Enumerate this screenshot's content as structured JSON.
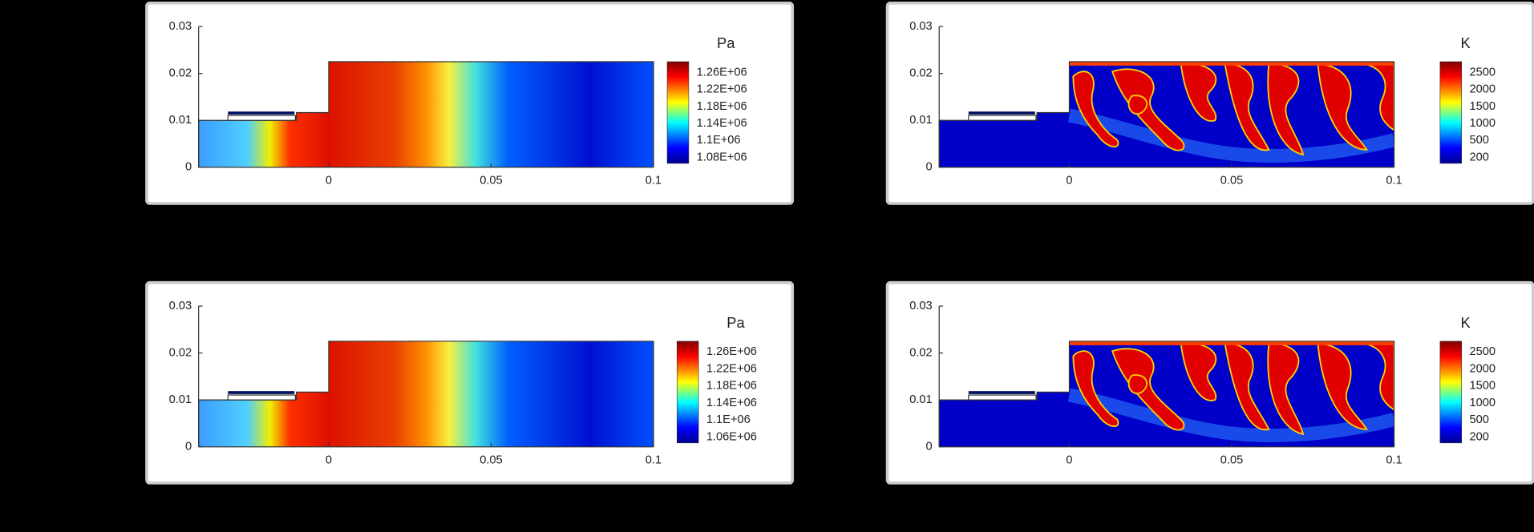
{
  "panels": [
    {
      "unit": "Pa",
      "colorbar_labels": [
        "1.26E+06",
        "1.22E+06",
        "1.18E+06",
        "1.14E+06",
        "1.1E+06",
        "1.08E+06"
      ],
      "yticks": [
        0.03,
        0.02,
        0.01,
        0
      ],
      "xticks": [
        0,
        0.05,
        0.1
      ]
    },
    {
      "unit": "K",
      "colorbar_labels": [
        "2500",
        "2000",
        "1500",
        "1000",
        "500",
        "200"
      ],
      "yticks": [
        0.03,
        0.02,
        0.01,
        0
      ],
      "xticks": [
        0,
        0.05,
        0.1
      ]
    },
    {
      "unit": "Pa",
      "colorbar_labels": [
        "1.26E+06",
        "1.22E+06",
        "1.18E+06",
        "1.14E+06",
        "1.1E+06",
        "1.06E+06"
      ],
      "yticks": [
        0.03,
        0.02,
        0.01,
        0
      ],
      "xticks": [
        0,
        0.05,
        0.1
      ]
    },
    {
      "unit": "K",
      "colorbar_labels": [
        "2500",
        "2000",
        "1500",
        "1000",
        "500",
        "200"
      ],
      "yticks": [
        0.03,
        0.02,
        0.01,
        0
      ],
      "xticks": [
        0,
        0.05,
        0.1
      ]
    }
  ]
}
